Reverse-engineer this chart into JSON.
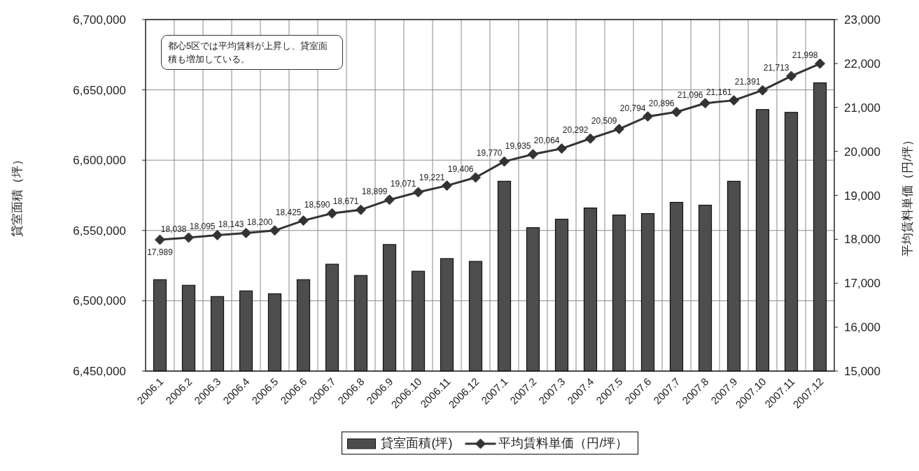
{
  "chart_data": {
    "type": "bar",
    "categories": [
      "2006.1",
      "2006.2",
      "2006.3",
      "2006.4",
      "2006.5",
      "2006.6",
      "2006.7",
      "2006.8",
      "2006.9",
      "2006.10",
      "2006.11",
      "2006.12",
      "2007.1",
      "2007.2",
      "2007.3",
      "2007.4",
      "2007.5",
      "2007.6",
      "2007.7",
      "2007.8",
      "2007.9",
      "2007.10",
      "2007.11",
      "2007.12"
    ],
    "ylabel": "貸室面積（坪）",
    "y2label": "平均賃料単価（円/坪）",
    "ylim": [
      6450000,
      6700000
    ],
    "yticks": [
      {
        "value": 6450000,
        "label": "6,450,000"
      },
      {
        "value": 6500000,
        "label": "6,500,000"
      },
      {
        "value": 6550000,
        "label": "6,550,000"
      },
      {
        "value": 6600000,
        "label": "6,600,000"
      },
      {
        "value": 6650000,
        "label": "6,650,000"
      },
      {
        "value": 6700000,
        "label": "6,700,000"
      }
    ],
    "y2lim": [
      15000,
      23000
    ],
    "y2ticks": [
      {
        "value": 15000,
        "label": "15,000"
      },
      {
        "value": 16000,
        "label": "16,000"
      },
      {
        "value": 17000,
        "label": "17,000"
      },
      {
        "value": 18000,
        "label": "18,000"
      },
      {
        "value": 19000,
        "label": "19,000"
      },
      {
        "value": 20000,
        "label": "20,000"
      },
      {
        "value": 21000,
        "label": "21,000"
      },
      {
        "value": 22000,
        "label": "22,000"
      },
      {
        "value": 23000,
        "label": "23,000"
      }
    ],
    "grid": true,
    "legend": "bottom",
    "series": [
      {
        "name": "貸室面積(坪)",
        "color": "#4d4d4d",
        "values": [
          6515000,
          6511000,
          6503000,
          6507000,
          6505000,
          6515000,
          6526000,
          6518000,
          6540000,
          6521000,
          6530000,
          6528000,
          6585000,
          6552000,
          6558000,
          6566000,
          6561000,
          6562000,
          6570000,
          6568000,
          6585000,
          6636000,
          6634000,
          6655000
        ]
      },
      {
        "name": "平均賃料単価（円/坪）",
        "type": "line",
        "axis": "y2",
        "color": "#333333",
        "marker": "diamond",
        "values": [
          17989,
          18038,
          18095,
          18143,
          18200,
          18425,
          18590,
          18671,
          18899,
          19071,
          19221,
          19406,
          19770,
          19935,
          20064,
          20292,
          20509,
          20794,
          20896,
          21096,
          21161,
          21391,
          21713,
          21998
        ],
        "value_labels": [
          "17,989",
          "18,038",
          "18,095",
          "18,143",
          "18,200",
          "18,425",
          "18,590",
          "18,671",
          "18,899",
          "19,071",
          "19,221",
          "19,406",
          "19,770",
          "19,935",
          "20,064",
          "20,292",
          "20,509",
          "20,794",
          "20,896",
          "21,096",
          "21,161",
          "21,391",
          "21,713",
          "21,998"
        ]
      }
    ],
    "annotations": [
      "都心5区では平均賃料が上昇し、貸室面積も増加している。"
    ]
  }
}
